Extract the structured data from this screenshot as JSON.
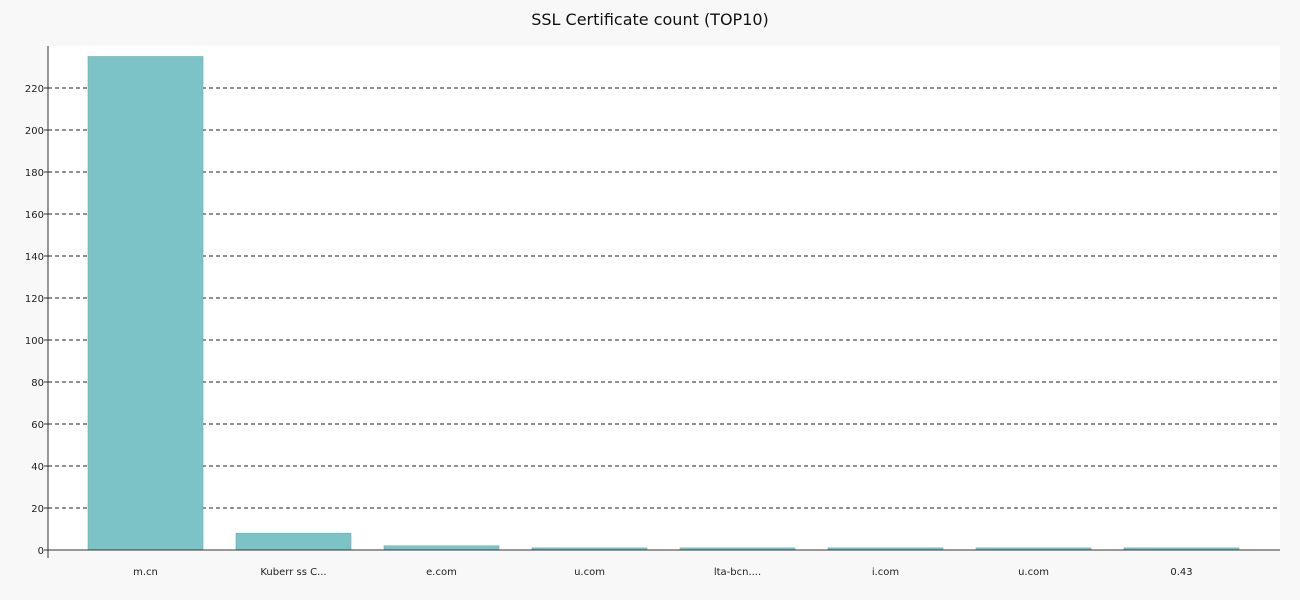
{
  "chart_data": {
    "type": "bar",
    "title": "SSL Certificate count (TOP10)",
    "xlabel": "",
    "ylabel": "",
    "categories": [
      "m.cn",
      "Kuberr ss C...",
      "e.com",
      "u.com",
      "lta-bcn....",
      "i.com",
      "u.com",
      "0.43"
    ],
    "values": [
      235,
      8,
      2,
      1,
      1,
      1,
      1,
      1
    ],
    "ylim": [
      0,
      240
    ],
    "yticks": [
      0,
      20,
      40,
      60,
      80,
      100,
      120,
      140,
      160,
      180,
      200,
      220
    ],
    "grid": true,
    "grid_style": "dashed",
    "bar_color": "#7cc3c6",
    "bar_edge_color": "#5fb0b4"
  }
}
